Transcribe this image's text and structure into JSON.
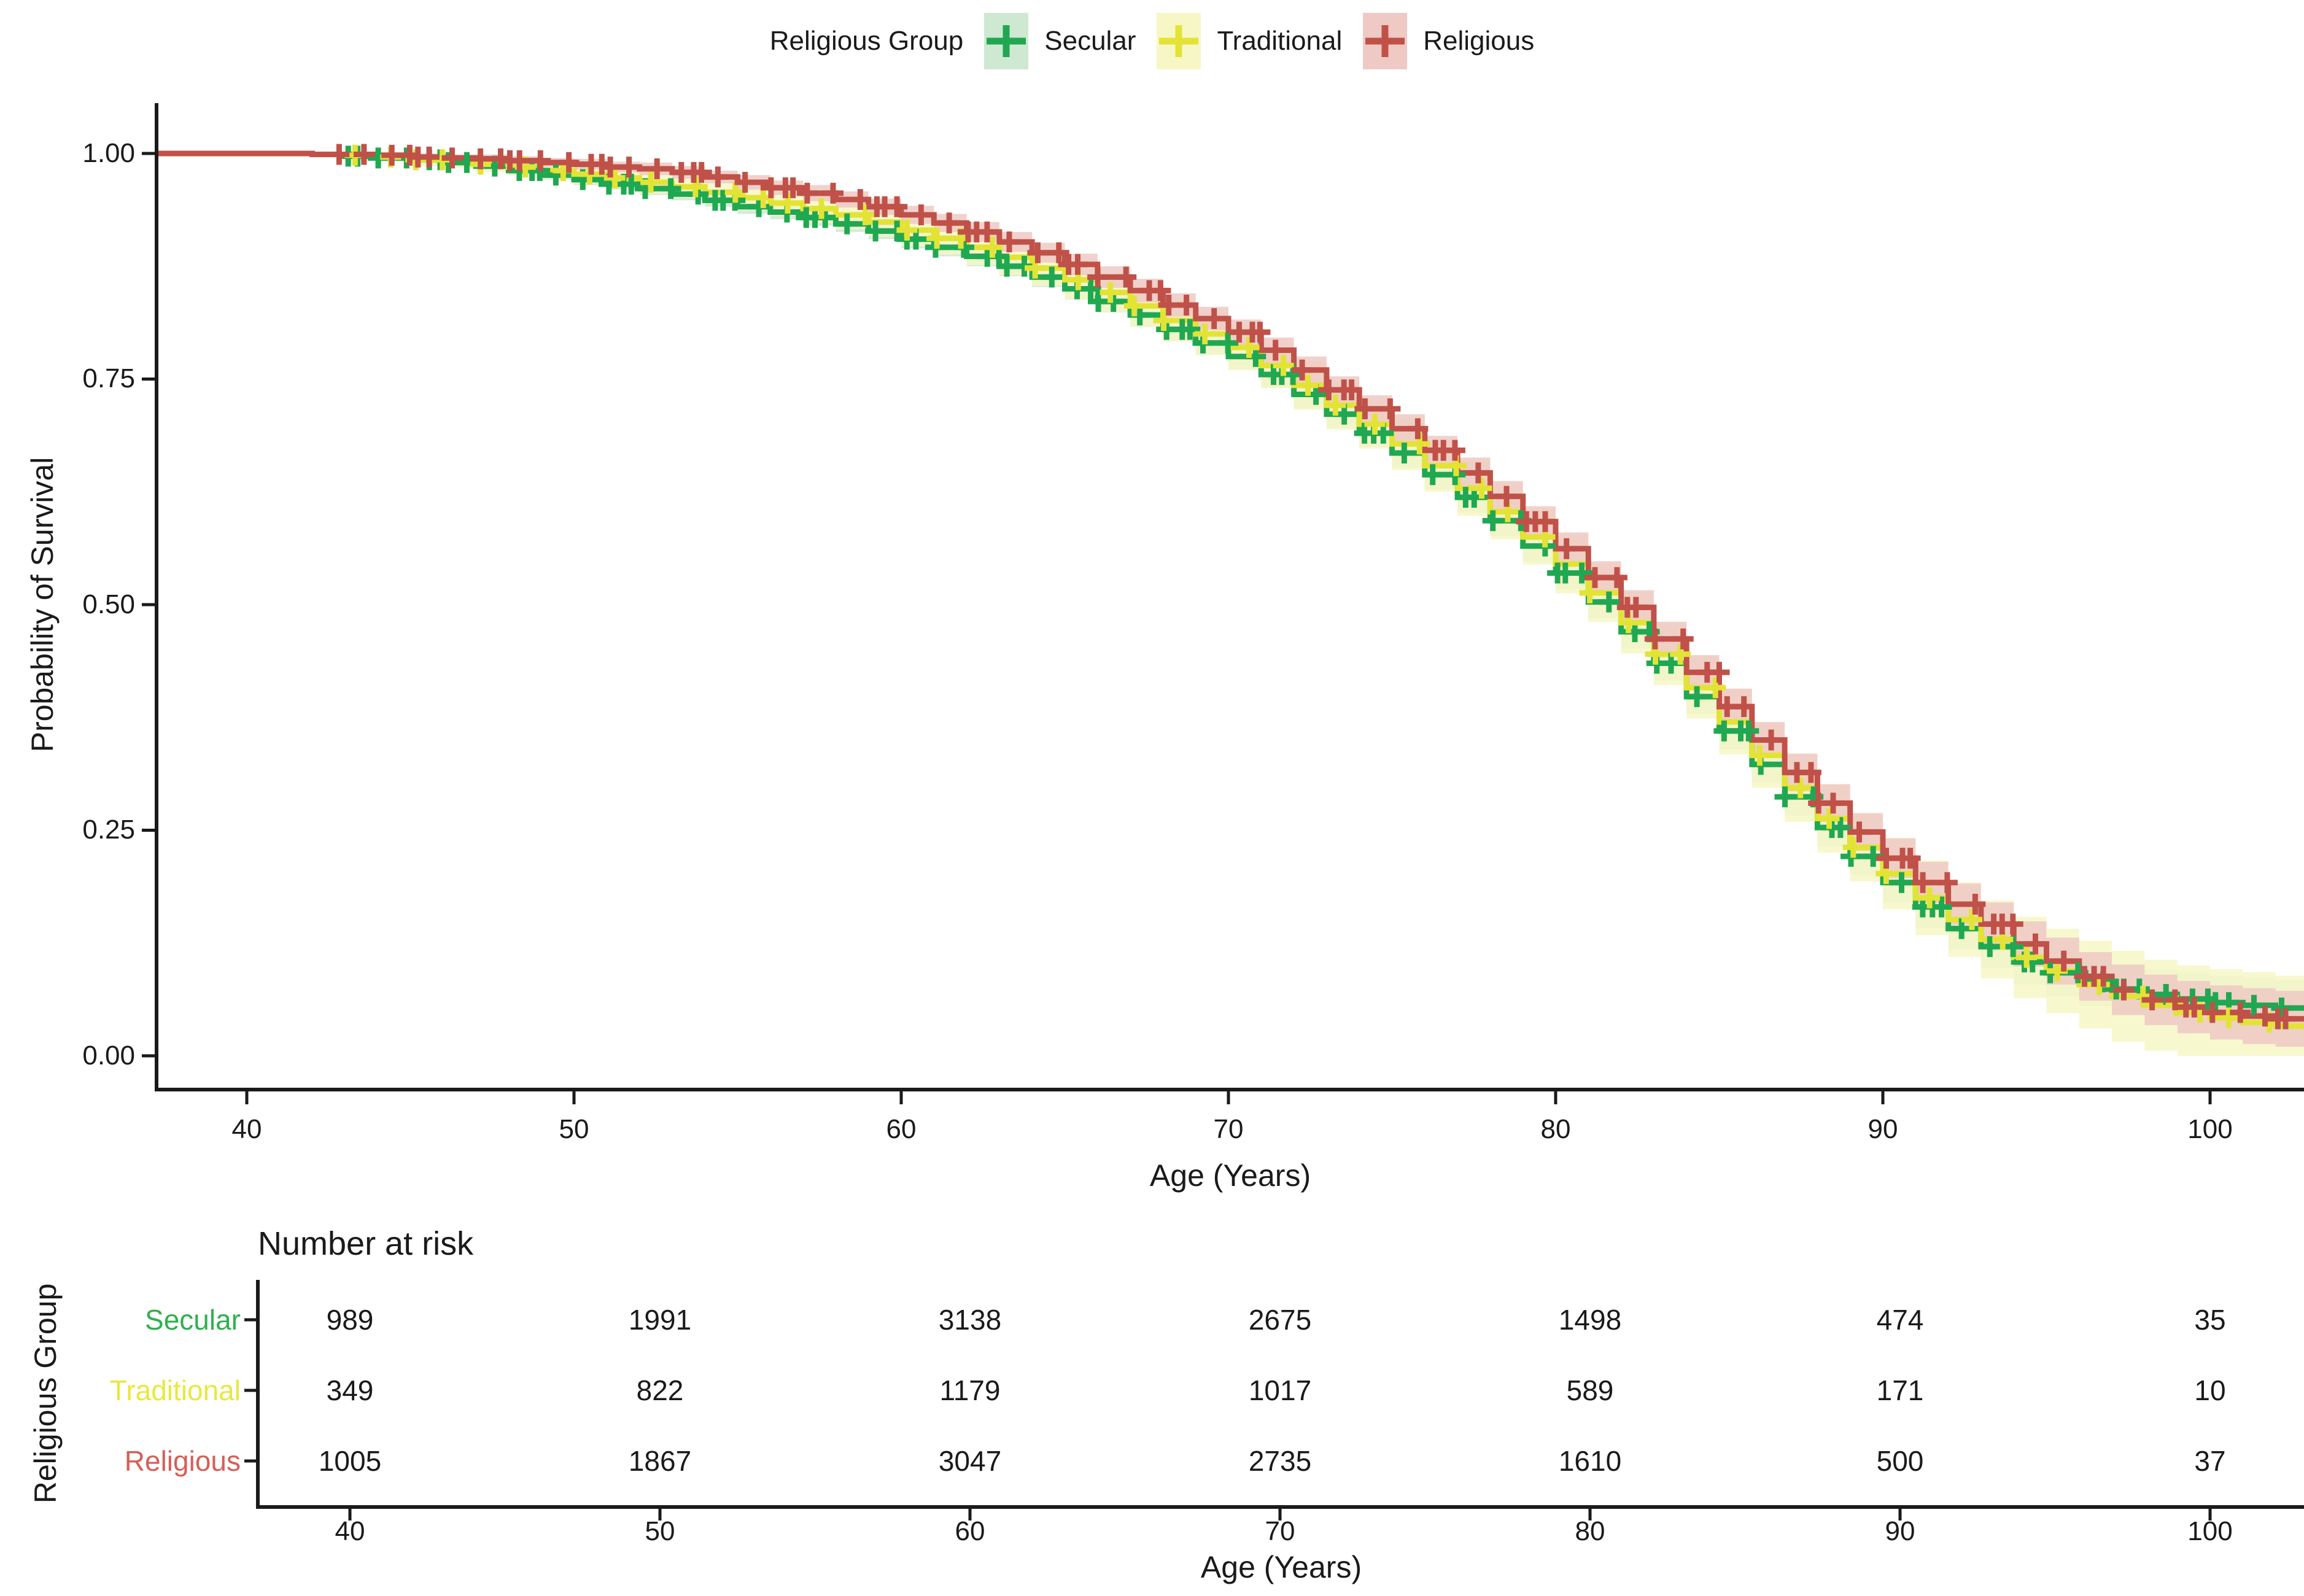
{
  "legend": {
    "title": "Religious Group",
    "items": [
      {
        "label": "Secular",
        "color": "#1fa851",
        "fill": "#cfe8d2"
      },
      {
        "label": "Traditional",
        "color": "#e3e335",
        "fill": "#f7f7c6"
      },
      {
        "label": "Religious",
        "color": "#c05149",
        "fill": "#efc9c4"
      }
    ]
  },
  "main_axes": {
    "ylabel": "Probability of Survival",
    "xlabel": "Age (Years)",
    "yticks": [
      "1.00",
      "0.75",
      "0.50",
      "0.25",
      "0.00"
    ],
    "xticks": [
      "40",
      "50",
      "60",
      "70",
      "80",
      "90",
      "100"
    ]
  },
  "risk_table": {
    "title": "Number at risk",
    "ylabel": "Religious Group",
    "xlabel": "Age (Years)",
    "xticks": [
      "40",
      "50",
      "60",
      "70",
      "80",
      "90",
      "100"
    ],
    "rows": [
      {
        "label": "Secular",
        "color": "#2fb14e",
        "values": [
          "989",
          "1991",
          "3138",
          "2675",
          "1498",
          "474",
          "35"
        ]
      },
      {
        "label": "Traditional",
        "color": "#e8e83f",
        "values": [
          "349",
          "822",
          "1179",
          "1017",
          "589",
          "171",
          "10"
        ]
      },
      {
        "label": "Religious",
        "color": "#d55f58",
        "values": [
          "1005",
          "1867",
          "3047",
          "2735",
          "1610",
          "500",
          "37"
        ]
      }
    ]
  },
  "chart_data": {
    "type": "line",
    "subtype": "kaplan-meier-step",
    "title": "",
    "xlabel": "Age (Years)",
    "ylabel": "Probability of Survival",
    "xlim": [
      37,
      103
    ],
    "ylim": [
      0.0,
      1.0
    ],
    "grid": false,
    "legend_position": "top",
    "x": [
      37,
      38,
      39,
      40,
      41,
      42,
      43,
      44,
      45,
      46,
      47,
      48,
      49,
      50,
      51,
      52,
      53,
      54,
      55,
      56,
      57,
      58,
      59,
      60,
      61,
      62,
      63,
      64,
      65,
      66,
      67,
      68,
      69,
      70,
      71,
      72,
      73,
      74,
      75,
      76,
      77,
      78,
      79,
      80,
      81,
      82,
      83,
      84,
      85,
      86,
      87,
      88,
      89,
      90,
      91,
      92,
      93,
      94,
      95,
      96,
      97,
      98,
      99,
      100,
      101,
      102,
      103
    ],
    "ci_halfwidth": [
      0.002,
      0.002,
      0.002,
      0.002,
      0.002,
      0.002,
      0.003,
      0.003,
      0.004,
      0.004,
      0.005,
      0.005,
      0.005,
      0.006,
      0.006,
      0.007,
      0.007,
      0.007,
      0.008,
      0.008,
      0.009,
      0.009,
      0.009,
      0.01,
      0.01,
      0.011,
      0.011,
      0.011,
      0.012,
      0.012,
      0.013,
      0.013,
      0.013,
      0.014,
      0.014,
      0.015,
      0.015,
      0.015,
      0.016,
      0.016,
      0.017,
      0.017,
      0.017,
      0.018,
      0.018,
      0.019,
      0.019,
      0.019,
      0.02,
      0.02,
      0.021,
      0.021,
      0.021,
      0.022,
      0.023,
      0.023,
      0.024,
      0.025,
      0.026,
      0.027,
      0.028,
      0.028,
      0.029,
      0.03,
      0.031,
      0.031,
      0.032
    ],
    "series": [
      {
        "name": "Secular",
        "color": "#1fa851",
        "fill": "#cfe8d2",
        "ci_mult": 1.0,
        "values": [
          1.0,
          1.0,
          1.0,
          1.0,
          1.0,
          0.999,
          0.997,
          0.995,
          0.993,
          0.99,
          0.986,
          0.981,
          0.976,
          0.971,
          0.966,
          0.961,
          0.955,
          0.948,
          0.941,
          0.935,
          0.929,
          0.922,
          0.914,
          0.905,
          0.896,
          0.886,
          0.875,
          0.863,
          0.85,
          0.836,
          0.821,
          0.805,
          0.79,
          0.775,
          0.755,
          0.733,
          0.711,
          0.69,
          0.668,
          0.644,
          0.619,
          0.593,
          0.565,
          0.535,
          0.503,
          0.47,
          0.435,
          0.398,
          0.36,
          0.323,
          0.287,
          0.253,
          0.221,
          0.192,
          0.165,
          0.141,
          0.121,
          0.104,
          0.092,
          0.082,
          0.074,
          0.068,
          0.063,
          0.059,
          0.056,
          0.053,
          0.051
        ]
      },
      {
        "name": "Traditional",
        "color": "#e3e335",
        "fill": "#f7f7c6",
        "ci_mult": 1.8,
        "values": [
          1.0,
          1.0,
          1.0,
          1.0,
          1.0,
          0.999,
          0.998,
          0.996,
          0.993,
          0.991,
          0.988,
          0.985,
          0.981,
          0.977,
          0.973,
          0.968,
          0.963,
          0.957,
          0.951,
          0.945,
          0.939,
          0.932,
          0.924,
          0.915,
          0.906,
          0.896,
          0.885,
          0.873,
          0.86,
          0.846,
          0.831,
          0.815,
          0.8,
          0.785,
          0.765,
          0.743,
          0.721,
          0.7,
          0.678,
          0.654,
          0.629,
          0.603,
          0.575,
          0.545,
          0.513,
          0.48,
          0.445,
          0.408,
          0.37,
          0.333,
          0.297,
          0.263,
          0.231,
          0.202,
          0.175,
          0.151,
          0.129,
          0.109,
          0.094,
          0.079,
          0.066,
          0.056,
          0.048,
          0.042,
          0.037,
          0.033,
          0.03
        ]
      },
      {
        "name": "Religious",
        "color": "#c05149",
        "fill": "#efc9c4",
        "ci_mult": 1.0,
        "values": [
          1.0,
          1.0,
          1.0,
          1.0,
          1.0,
          0.999,
          0.999,
          0.998,
          0.996,
          0.995,
          0.994,
          0.992,
          0.99,
          0.988,
          0.985,
          0.983,
          0.979,
          0.974,
          0.968,
          0.962,
          0.956,
          0.949,
          0.941,
          0.932,
          0.923,
          0.913,
          0.902,
          0.89,
          0.877,
          0.863,
          0.848,
          0.832,
          0.817,
          0.802,
          0.782,
          0.76,
          0.738,
          0.717,
          0.695,
          0.671,
          0.646,
          0.62,
          0.592,
          0.562,
          0.53,
          0.497,
          0.462,
          0.425,
          0.387,
          0.35,
          0.314,
          0.28,
          0.248,
          0.219,
          0.192,
          0.168,
          0.146,
          0.124,
          0.105,
          0.088,
          0.073,
          0.062,
          0.054,
          0.048,
          0.044,
          0.041,
          0.038
        ]
      }
    ],
    "risk_table": {
      "title": "Number at risk",
      "group_axis_label": "Religious Group",
      "ages": [
        40,
        50,
        60,
        70,
        80,
        90,
        100
      ],
      "rows": [
        {
          "name": "Secular",
          "counts": [
            989,
            1991,
            3138,
            2675,
            1498,
            474,
            35
          ]
        },
        {
          "name": "Traditional",
          "counts": [
            349,
            822,
            1179,
            1017,
            589,
            171,
            10
          ]
        },
        {
          "name": "Religious",
          "counts": [
            1005,
            1867,
            3047,
            2735,
            1610,
            500,
            37
          ]
        }
      ]
    }
  },
  "colors": {
    "axis": "#1a1a1a",
    "text": "#1a1a1a",
    "background": "#ffffff"
  }
}
